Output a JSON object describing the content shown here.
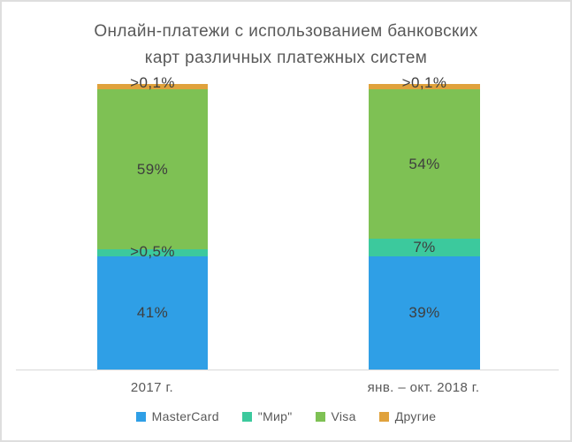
{
  "title": {
    "line1": "Онлайн-платежи с использованием банковских",
    "line2": "карт различных платежных систем"
  },
  "chart_data": {
    "type": "bar",
    "stacked": true,
    "orientation": "vertical",
    "unit": "%",
    "title": "Онлайн-платежи с использованием банковских карт различных платежных систем",
    "categories": [
      "2017 г.",
      "янв. – окт. 2018 г."
    ],
    "series": [
      {
        "name": "MasterCard",
        "color": "#2F9FE6",
        "values": [
          41,
          39
        ],
        "labels": [
          "41%",
          "39%"
        ]
      },
      {
        "name": "\"Мир\"",
        "color": "#3CC99D",
        "values": [
          0.5,
          7
        ],
        "labels": [
          ">0,5%",
          "7%"
        ]
      },
      {
        "name": "Visa",
        "color": "#7EC154",
        "values": [
          59,
          54
        ],
        "labels": [
          "59%",
          "54%"
        ]
      },
      {
        "name": "Другие",
        "color": "#E0A23C",
        "values": [
          0.1,
          0.1
        ],
        "labels": [
          ">0,1%",
          ">0,1%"
        ]
      }
    ],
    "legend_position": "bottom",
    "axes": {
      "y_axis_visible": false,
      "gridlines": false,
      "x_axis_line": true
    }
  },
  "colors": {
    "mastercard": "#2F9FE6",
    "mir": "#3CC99D",
    "visa": "#7EC154",
    "other": "#E0A23C",
    "title_text": "#595959",
    "data_label_text": "#3E3E3E",
    "axis_line": "#D9D9D9",
    "frame_border": "#DEDEDE",
    "background": "#FFFFFF"
  }
}
